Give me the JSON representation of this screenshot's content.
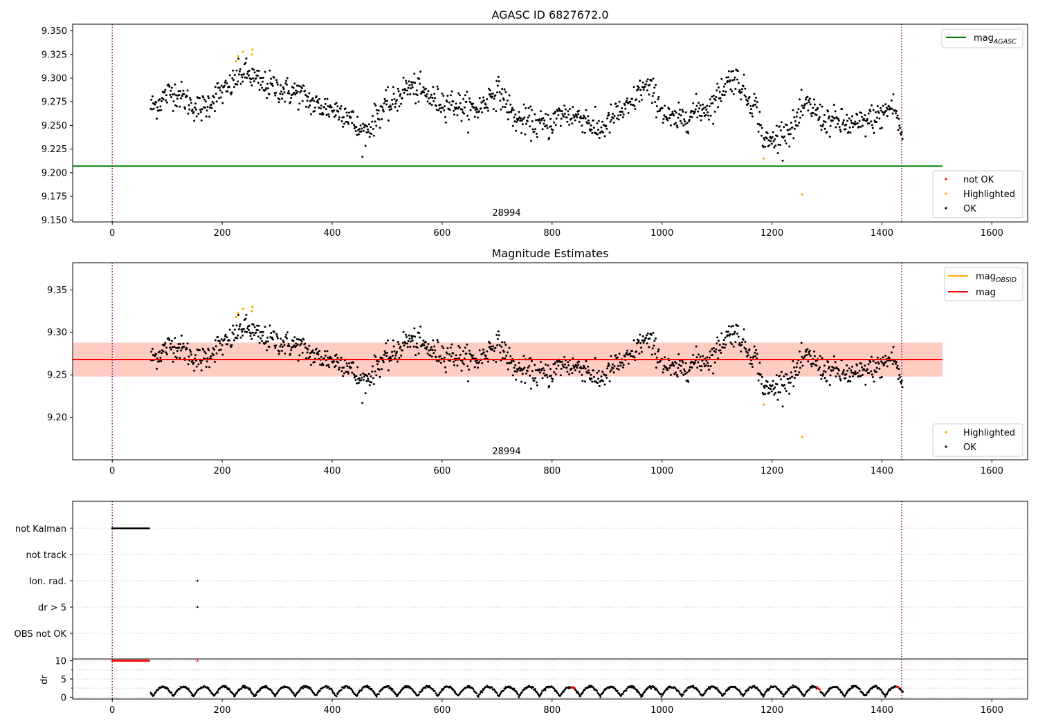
{
  "chart_data": [
    {
      "type": "scatter",
      "title": "AGASC ID 6827672.0",
      "xlim": [
        -72,
        1665
      ],
      "ylim": [
        9.148,
        9.357
      ],
      "xticks": [
        0,
        200,
        400,
        600,
        800,
        1000,
        1200,
        1400,
        1600
      ],
      "yticks": [
        "9.150",
        "9.175",
        "9.200",
        "9.225",
        "9.250",
        "9.275",
        "9.300",
        "9.325",
        "9.350"
      ],
      "obsid_label": "28994",
      "obsid_boundaries": [
        0,
        1436
      ],
      "mag_agasc": 9.207,
      "mag_agasc_xrange": [
        -72,
        1510
      ],
      "x_range": [
        70,
        1438
      ],
      "highlighted_points": [
        [
          225,
          9.318
        ],
        [
          229,
          9.323
        ],
        [
          238,
          9.328
        ],
        [
          254,
          9.325
        ],
        [
          255,
          9.33
        ],
        [
          1185,
          9.215
        ],
        [
          1255,
          9.177
        ]
      ],
      "legend_lines": {
        "mag_agasc": {
          "base": "mag",
          "sub": "AGASC"
        }
      },
      "legend_points": {
        "not_ok": "not OK",
        "highlighted": "Highlighted",
        "ok": "OK"
      },
      "colors": {
        "ok": "#000000",
        "highlighted": "#ffa500",
        "not_ok": "#ff0000",
        "mag_agasc": "#008000",
        "boundary": "#800080"
      }
    },
    {
      "type": "scatter",
      "title": "Magnitude Estimates",
      "xlim": [
        -72,
        1665
      ],
      "ylim": [
        9.15,
        9.382
      ],
      "xticks": [
        0,
        200,
        400,
        600,
        800,
        1000,
        1200,
        1400,
        1600
      ],
      "yticks": [
        "9.20",
        "9.25",
        "9.30",
        "9.35"
      ],
      "obsid_label": "28994",
      "obsid_boundaries": [
        0,
        1436
      ],
      "mag": 9.268,
      "mag_band": [
        9.248,
        9.288
      ],
      "mag_obsid": 9.268,
      "mag_obsid_band": [
        9.248,
        9.288
      ],
      "line_xrange": [
        -72,
        1510
      ],
      "highlighted_points": [
        [
          225,
          9.318
        ],
        [
          229,
          9.323
        ],
        [
          238,
          9.328
        ],
        [
          254,
          9.325
        ],
        [
          255,
          9.33
        ],
        [
          1185,
          9.215
        ],
        [
          1255,
          9.177
        ]
      ],
      "legend_lines": {
        "mag_obsid": {
          "base": "mag",
          "sub": "OBSID"
        },
        "mag": "mag"
      },
      "legend_points": {
        "highlighted": "Highlighted",
        "ok": "OK"
      },
      "colors": {
        "mag": "#ff0000",
        "mag_obsid": "#ffa500",
        "band_mag": "#ffc0cb",
        "band_obsid": "#ffa07a"
      }
    },
    {
      "type": "scatter",
      "title": "",
      "xlim": [
        -72,
        1665
      ],
      "xticks": [
        0,
        200,
        400,
        600,
        800,
        1000,
        1200,
        1400,
        1600
      ],
      "categories": [
        "not Kalman",
        "not track",
        "Ion. rad.",
        "dr > 5",
        "OBS not OK"
      ],
      "flag_points": {
        "not Kalman": {
          "x_start": 0,
          "x_end": 68
        },
        "Ion. rad.": [
          155
        ],
        "dr > 5": [
          155
        ]
      },
      "dr": {
        "ylabel": "dr",
        "ylim": [
          -0.5,
          10.5
        ],
        "yticks": [
          0,
          5,
          10
        ],
        "clipped_points": {
          "x_start": 0,
          "x_end": 68,
          "value": 10
        },
        "clipped_extra": [
          155
        ],
        "red_segments": [
          742,
          838,
          930,
          1078,
          1285,
          1428
        ]
      }
    }
  ]
}
